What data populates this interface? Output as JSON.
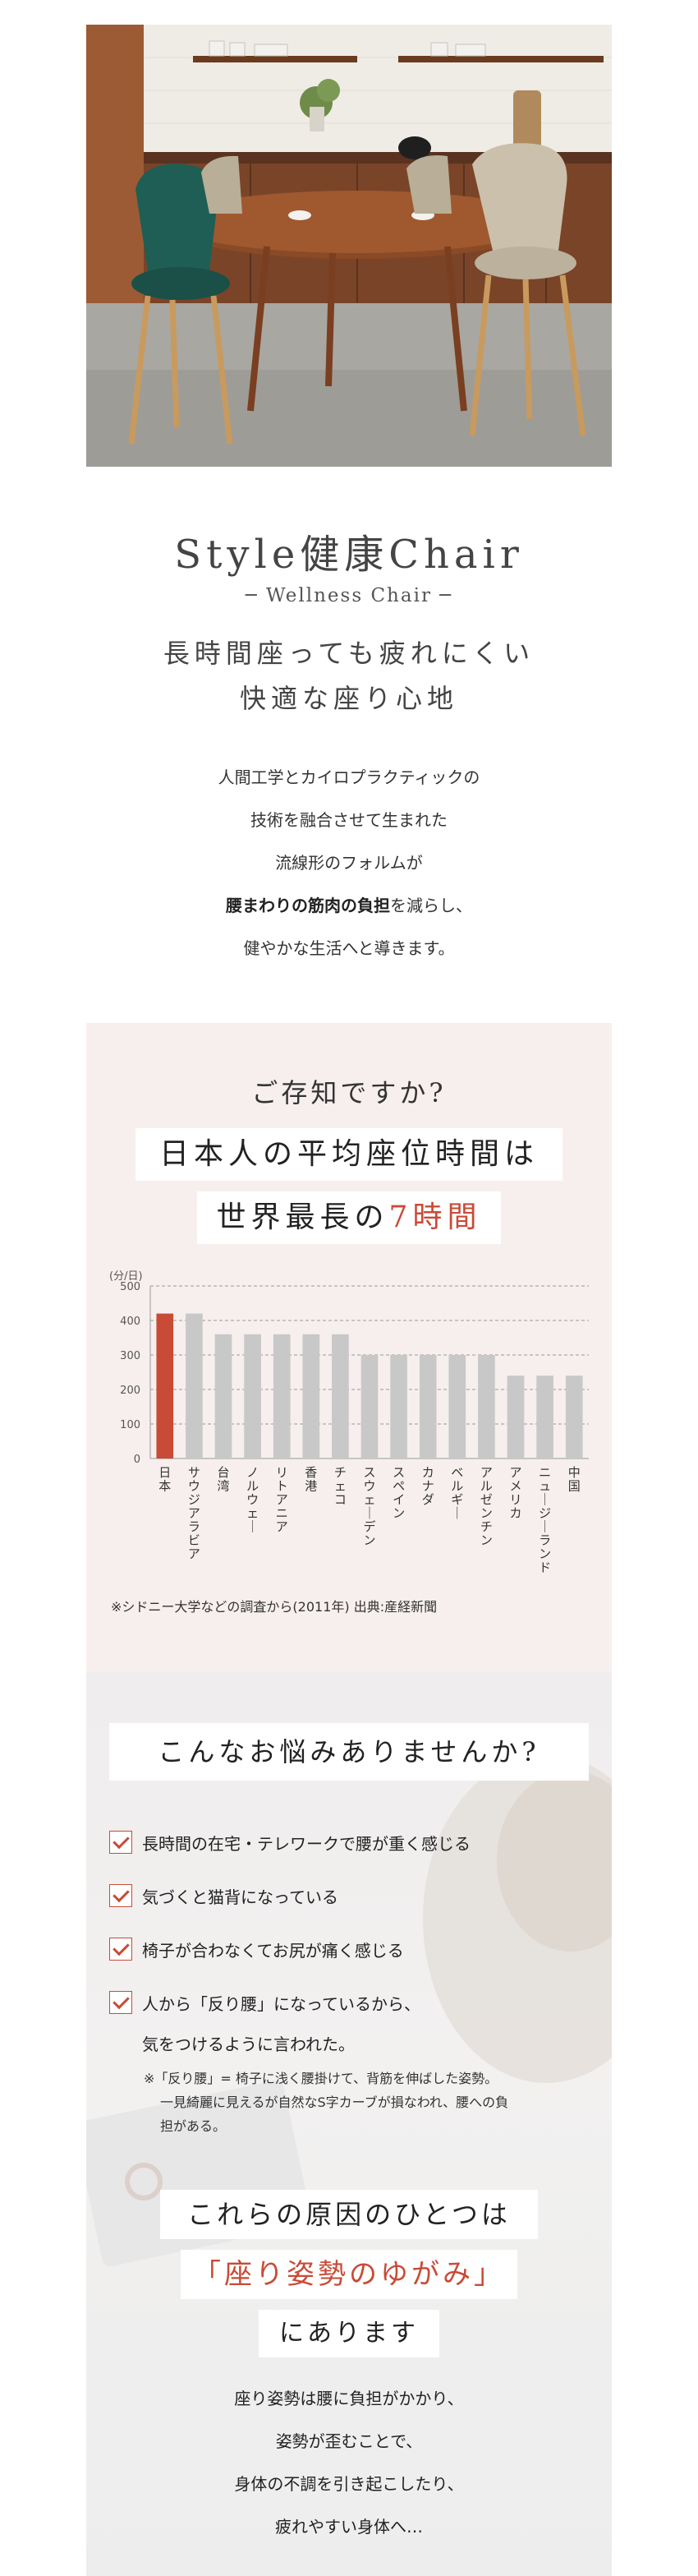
{
  "hero": {
    "alt": "Style健康Chair dining scene"
  },
  "intro": {
    "brand": "Style健康Chair",
    "sub_brand": "─ Wellness Chair ─",
    "catch_lines": [
      "長時間座っても疲れにくい",
      "快適な座り心地"
    ],
    "desc_lines": [
      "人間工学とカイロプラクティックの",
      "技術を融合させて生まれた",
      "流線形のフォルムが"
    ],
    "desc_bold": "腰まわりの筋肉の負担",
    "desc_after_bold": "を減らし、",
    "desc_last": "健やかな生活へと導きます。"
  },
  "stats": {
    "question": "ご存知ですか?",
    "headline_1": "日本人の平均座位時間は",
    "headline_2_prefix": "世界最長の",
    "headline_2_highlight": "7時間",
    "unit_label": "(分/日)",
    "source": "※シドニー大学などの調査から(2011年) 出典:産経新聞"
  },
  "chart_data": {
    "type": "bar",
    "categories": [
      "日本",
      "サウジアラビア",
      "台湾",
      "ノルウェー",
      "リトアニア",
      "香港",
      "チェコ",
      "スウェーデン",
      "スペイン",
      "カナダ",
      "ベルギー",
      "アルゼンチン",
      "アメリカ",
      "ニュージーランド",
      "中国"
    ],
    "values": [
      420,
      420,
      360,
      360,
      360,
      360,
      360,
      300,
      300,
      300,
      300,
      300,
      240,
      240,
      240
    ],
    "highlight_index": 0,
    "yticks": [
      0,
      100,
      200,
      300,
      400,
      500
    ],
    "ylim": [
      0,
      500
    ],
    "ylabel": "(分/日)",
    "grid": true,
    "colors": {
      "highlight": "#c84b36",
      "bar": "#c8c8c8",
      "grid": "#999999"
    }
  },
  "troubles": {
    "title": "こんなお悩みありませんか?",
    "items": [
      "長時間の在宅・テレワークで腰が重く感じる",
      "気づくと猫背になっている",
      "椅子が合わなくてお尻が痛く感じる",
      "人から「反り腰」になっているから、"
    ],
    "item4_cont": "気をつけるように言われた。",
    "note_lines": [
      "※「反り腰」= 椅子に浅く腰掛けて、背筋を伸ばした姿勢。",
      "一見綺麗に見えるが自然なS字カーブが損なわれ、腰への負",
      "担がある。"
    ],
    "cause_1": "これらの原因のひとつは",
    "cause_2": "「座り姿勢のゆがみ」",
    "cause_3": "にあります",
    "closing_lines": [
      "座り姿勢は腰に負担がかかり、",
      "姿勢が歪むことで、",
      "身体の不調を引き起こしたり、",
      "疲れやすい身体へ…"
    ]
  },
  "colors": {
    "accent": "#c84b36",
    "pink_bg": "#f7efee",
    "check_bg": "#ffffff"
  }
}
